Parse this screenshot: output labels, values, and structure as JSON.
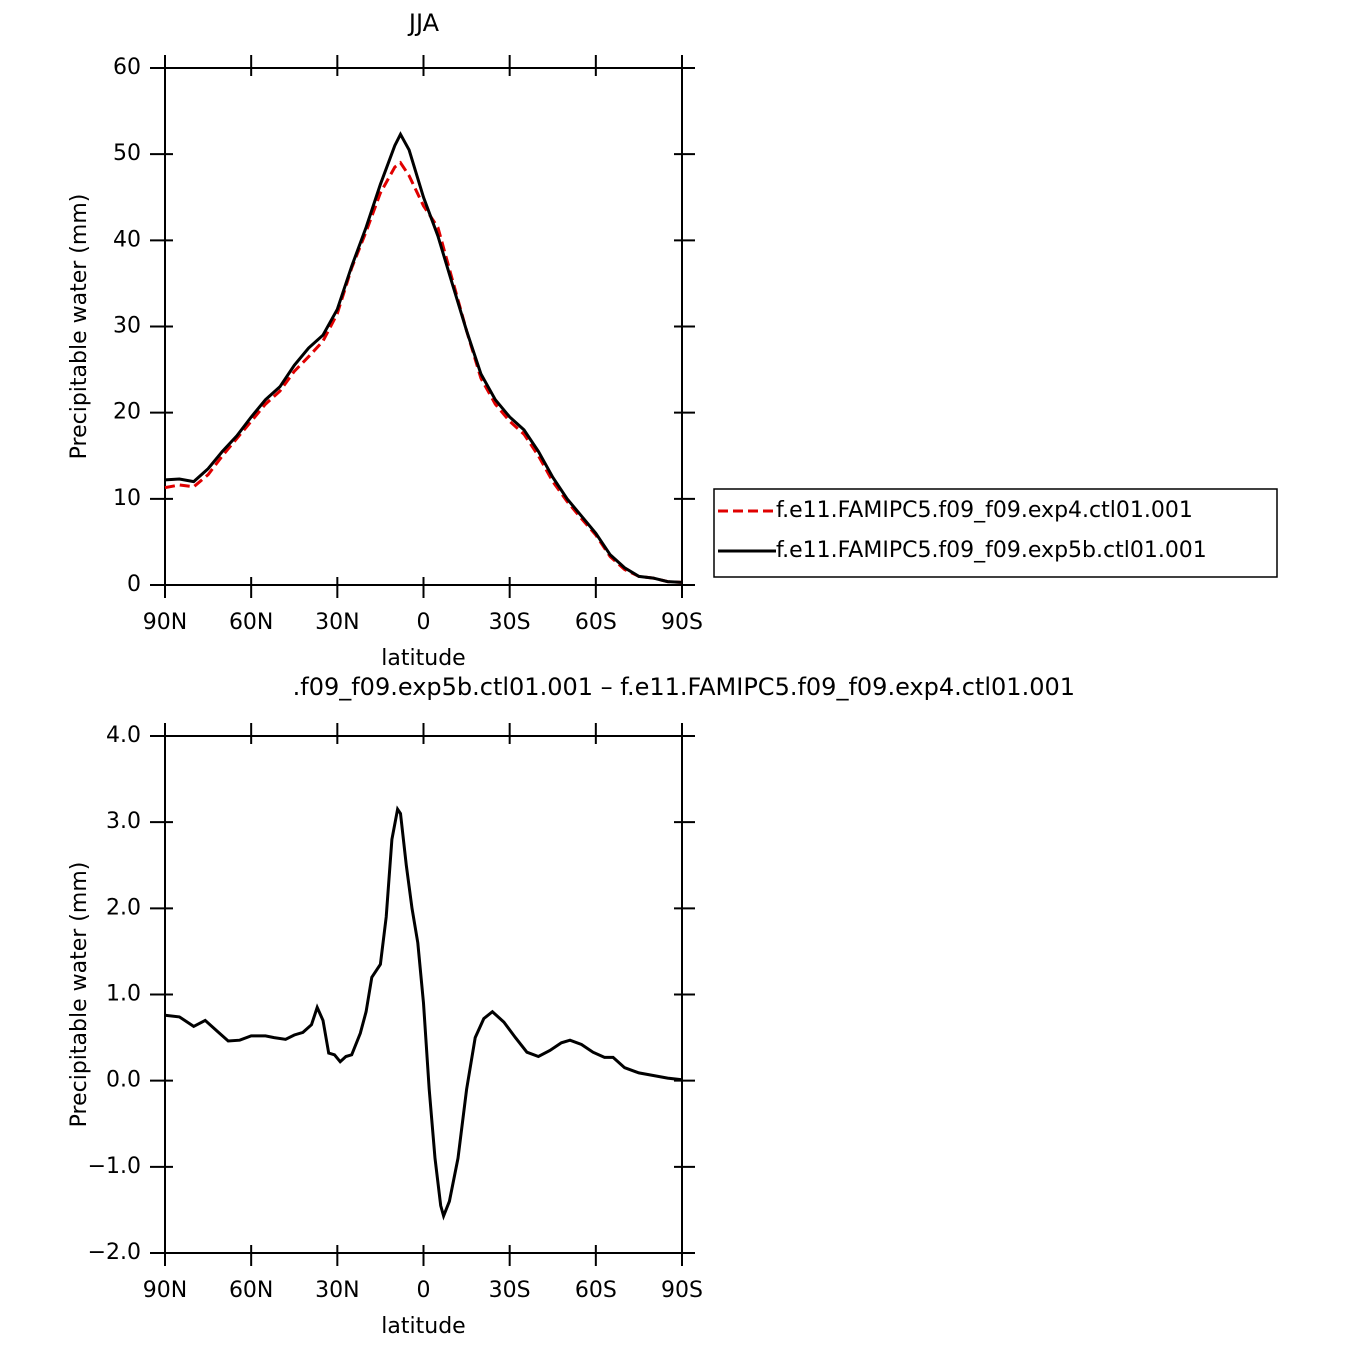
{
  "chart_data": [
    {
      "type": "line",
      "title": "JJA",
      "x_label": "latitude",
      "y_label": "Precipitable water (mm)",
      "x": [
        90,
        85,
        80,
        75,
        70,
        65,
        60,
        55,
        50,
        45,
        40,
        35,
        30,
        25,
        20,
        15,
        10,
        8,
        5,
        0,
        -5,
        -10,
        -15,
        -20,
        -25,
        -30,
        -35,
        -40,
        -45,
        -50,
        -55,
        -60,
        -65,
        -70,
        -75,
        -80,
        -85,
        -90
      ],
      "series": [
        {
          "name": "f.e11.FAMIPC5.f09_f09.exp4.ctl01.001",
          "color": "#e00000",
          "dashed": true,
          "values": [
            11.3,
            11.6,
            11.4,
            12.8,
            15.0,
            17.0,
            19.0,
            21.0,
            22.5,
            24.8,
            26.5,
            28.3,
            31.5,
            36.8,
            41.0,
            45.5,
            48.5,
            49.0,
            47.5,
            44.0,
            41.5,
            35.5,
            29.5,
            24.0,
            21.0,
            19.0,
            17.5,
            15.0,
            12.0,
            9.7,
            7.7,
            5.8,
            3.3,
            1.8,
            1.0,
            0.8,
            0.4,
            0.3
          ]
        },
        {
          "name": "f.e11.FAMIPC5.f09_f09.exp5b.ctl01.001",
          "color": "#000000",
          "dashed": false,
          "values": [
            12.2,
            12.3,
            12.0,
            13.5,
            15.5,
            17.3,
            19.5,
            21.5,
            23.0,
            25.5,
            27.5,
            29.0,
            32.0,
            37.0,
            41.5,
            46.5,
            51.0,
            52.3,
            50.5,
            45.0,
            40.5,
            35.0,
            29.5,
            24.5,
            21.5,
            19.5,
            18.0,
            15.5,
            12.5,
            10.0,
            8.0,
            6.0,
            3.5,
            2.0,
            1.0,
            0.8,
            0.4,
            0.3
          ]
        }
      ],
      "xlim": [
        90,
        -90
      ],
      "xticks": [
        {
          "value": 90,
          "label": "90N"
        },
        {
          "value": 60,
          "label": "60N"
        },
        {
          "value": 30,
          "label": "30N"
        },
        0,
        {
          "value": -30,
          "label": "30S"
        },
        {
          "value": -60,
          "label": "60S"
        },
        {
          "value": -90,
          "label": "90S"
        }
      ],
      "ylim": [
        0,
        60
      ],
      "yticks": [
        0,
        10,
        20,
        30,
        40,
        50,
        60
      ],
      "legend": "right"
    },
    {
      "type": "line",
      "title": ".f09_f09.exp5b.ctl01.001  –  f.e11.FAMIPC5.f09_f09.exp4.ctl01.001",
      "x_label": "latitude",
      "y_label": "Precipitable water (mm)",
      "x": [
        90,
        85,
        80,
        76,
        72,
        68,
        64,
        60,
        55,
        52,
        48,
        45,
        42,
        39,
        37,
        35,
        33,
        31,
        29,
        27,
        25,
        22,
        20,
        18,
        15,
        13,
        11,
        9,
        8,
        6,
        4,
        2,
        0,
        -2,
        -4,
        -6,
        -7,
        -9,
        -12,
        -15,
        -18,
        -21,
        -24,
        -28,
        -32,
        -36,
        -40,
        -44,
        -48,
        -51,
        -55,
        -59,
        -63,
        -66,
        -70,
        -75,
        -80,
        -85,
        -90
      ],
      "series": [
        {
          "color": "#000000",
          "dashed": false,
          "values": [
            0.76,
            0.74,
            0.63,
            0.7,
            0.58,
            0.46,
            0.47,
            0.52,
            0.52,
            0.5,
            0.48,
            0.53,
            0.56,
            0.65,
            0.85,
            0.7,
            0.32,
            0.3,
            0.22,
            0.28,
            0.3,
            0.55,
            0.8,
            1.2,
            1.35,
            1.9,
            2.8,
            3.15,
            3.1,
            2.5,
            2.0,
            1.6,
            0.9,
            -0.1,
            -0.9,
            -1.45,
            -1.57,
            -1.4,
            -0.9,
            -0.1,
            0.5,
            0.72,
            0.8,
            0.68,
            0.5,
            0.33,
            0.28,
            0.35,
            0.44,
            0.47,
            0.42,
            0.33,
            0.27,
            0.27,
            0.15,
            0.09,
            0.06,
            0.03,
            0.01
          ]
        }
      ],
      "xlim": [
        90,
        -90
      ],
      "xticks": [
        {
          "value": 90,
          "label": "90N"
        },
        {
          "value": 60,
          "label": "60N"
        },
        {
          "value": 30,
          "label": "30N"
        },
        0,
        {
          "value": -30,
          "label": "30S"
        },
        {
          "value": -60,
          "label": "60S"
        },
        {
          "value": -90,
          "label": "90S"
        }
      ],
      "ylim": [
        -2,
        4
      ],
      "yticks": [
        {
          "value": -2,
          "label": "−2.0"
        },
        {
          "value": -1,
          "label": "−1.0"
        },
        {
          "value": 0,
          "label": "0.0"
        },
        {
          "value": 1,
          "label": "1.0"
        },
        {
          "value": 2,
          "label": "2.0"
        },
        {
          "value": 3,
          "label": "3.0"
        },
        {
          "value": 4,
          "label": "4.0"
        }
      ]
    }
  ]
}
